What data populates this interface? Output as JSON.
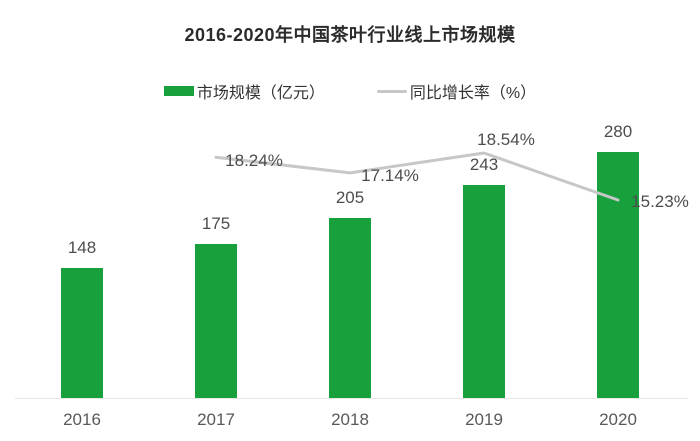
{
  "title": "2016-2020年中国茶叶行业线上市场规模",
  "legend": [
    {
      "label": "市场规模（亿元）",
      "type": "bar",
      "color": "#17a03c"
    },
    {
      "label": "同比增长率（%）",
      "type": "line",
      "color": "#c7c7c7"
    }
  ],
  "chart_data": {
    "type": "bar",
    "title": "2016-2020年中国茶叶行业线上市场规模",
    "categories": [
      "2016",
      "2017",
      "2018",
      "2019",
      "2020"
    ],
    "series": [
      {
        "name": "市场规模（亿元）",
        "type": "bar",
        "color": "#17a03c",
        "values": [
          148,
          175,
          205,
          243,
          280
        ],
        "labels": [
          "148",
          "175",
          "205",
          "243",
          "280"
        ]
      },
      {
        "name": "同比增长率（%）",
        "type": "line",
        "color": "#c7c7c7",
        "values": [
          null,
          18.24,
          17.14,
          18.54,
          15.23
        ],
        "labels": [
          null,
          "18.24%",
          "17.14%",
          "18.54%",
          "15.23%"
        ]
      }
    ],
    "xlabel": "",
    "ylabel": "",
    "bar_axis_range": [
      0,
      300
    ],
    "line_axis_range_pct": [
      13,
      20
    ],
    "gridlines": false,
    "y_axis_visible": false,
    "x_axis_line": true,
    "legend_position": "top"
  }
}
